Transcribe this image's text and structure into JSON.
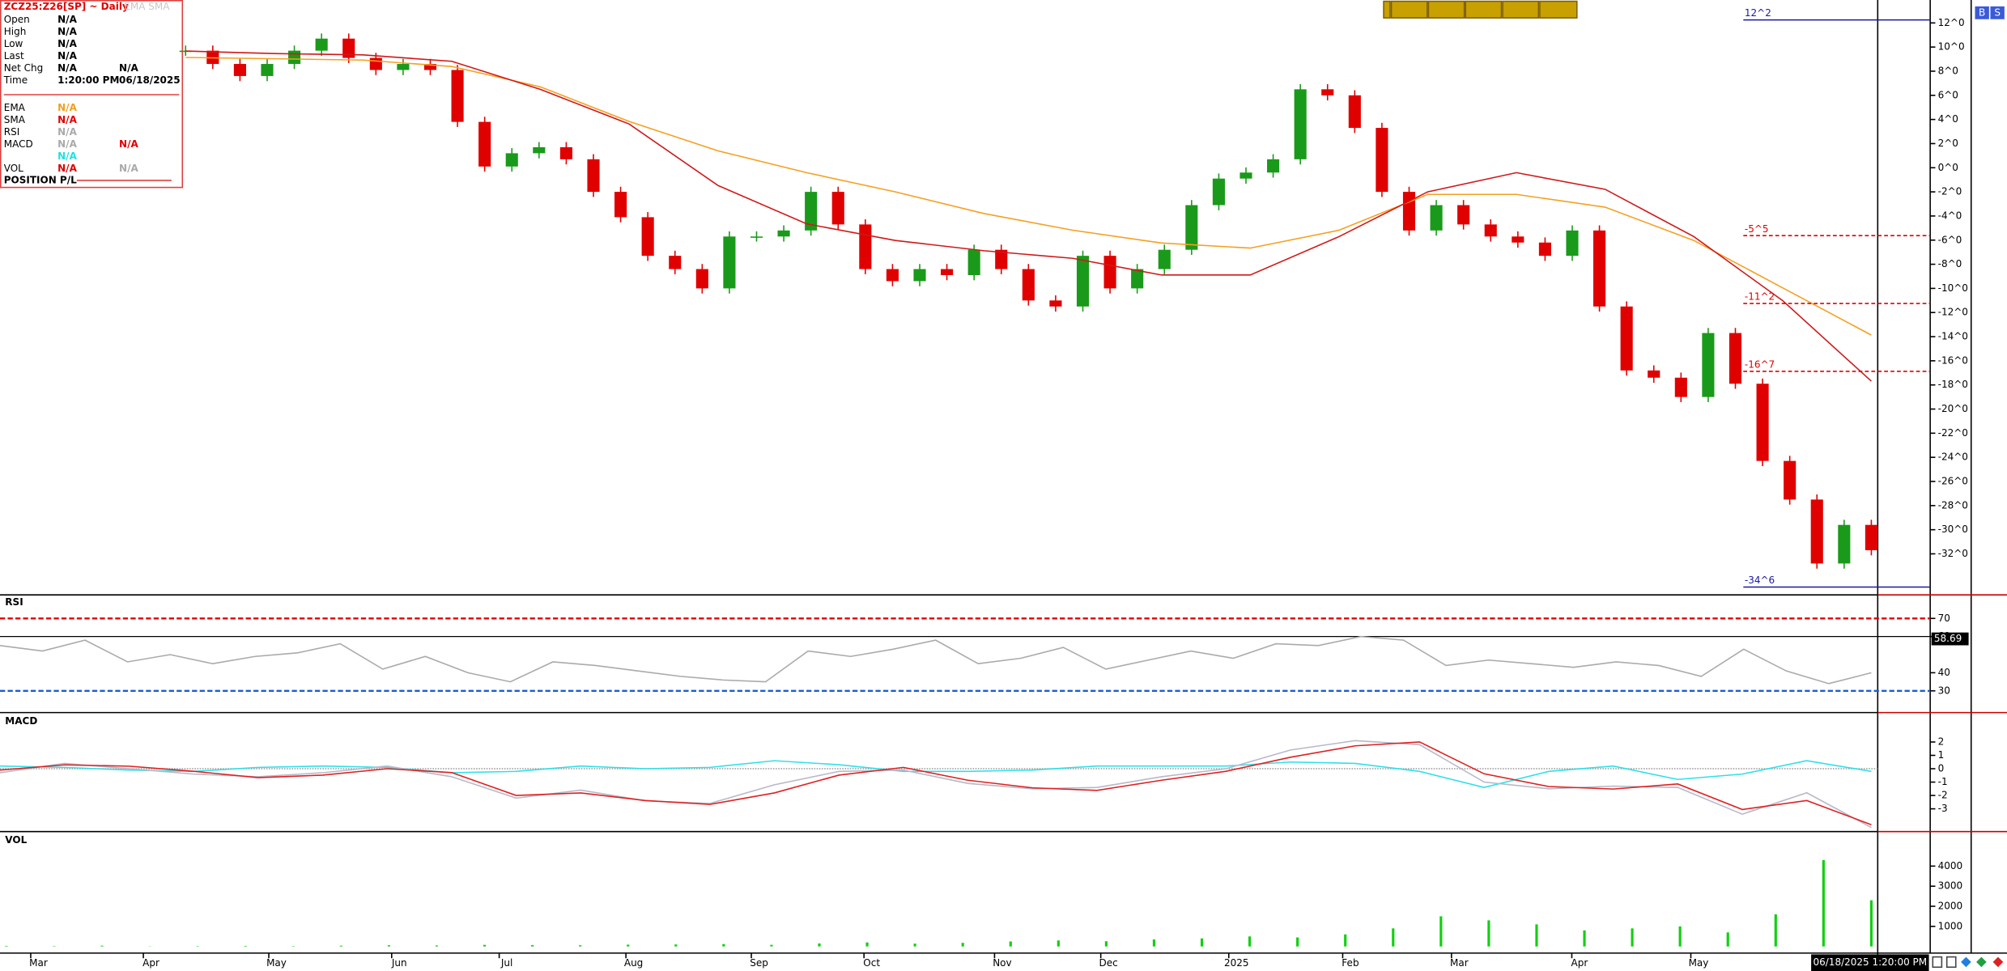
{
  "header": {
    "symbol": "ZCZ25:Z26[SP] ~ Daily",
    "indicators": "EMA SMA"
  },
  "info_panel": {
    "price_rows": [
      {
        "label": "Open",
        "values": [
          "N/A"
        ]
      },
      {
        "label": "High",
        "values": [
          "N/A"
        ]
      },
      {
        "label": "Low",
        "values": [
          "N/A"
        ]
      },
      {
        "label": "Last",
        "values": [
          "N/A"
        ]
      },
      {
        "label": "Net Chg",
        "values": [
          "N/A",
          "N/A"
        ]
      },
      {
        "label": "Time",
        "values": [
          "1:20:00 PM",
          "06/18/2025"
        ]
      }
    ],
    "indicator_rows": [
      {
        "label": "EMA",
        "values": [
          "N/A"
        ],
        "colors": [
          "#f0a020"
        ]
      },
      {
        "label": "SMA",
        "values": [
          "N/A"
        ],
        "colors": [
          "#e00000"
        ]
      },
      {
        "label": "RSI",
        "values": [
          "N/A"
        ],
        "colors": [
          "#aaaaaa"
        ]
      },
      {
        "label": "MACD",
        "values": [
          "N/A",
          "N/A"
        ],
        "colors": [
          "#aaaaaa",
          "#e00000"
        ]
      },
      {
        "values": [
          "N/A"
        ],
        "colors": [
          "#20e0e0"
        ]
      },
      {
        "label": "VOL",
        "values": [
          "N/A",
          "N/A"
        ],
        "colors": [
          "#e00000",
          "#aaaaaa"
        ]
      }
    ],
    "footer": "POSITION P/L"
  },
  "chart_data": [
    {
      "type": "candlestick",
      "up_color": "#1a9a1a",
      "down_color": "#e00000",
      "values": [
        9.7,
        8.6,
        7.6,
        8.6,
        9.7,
        10.7,
        9.1,
        8.1,
        8.6,
        8.1,
        3.8,
        0.1,
        1.2,
        1.7,
        0.7,
        -2.0,
        -4.1,
        -7.3,
        -8.4,
        -10.0,
        -5.7,
        -5.7,
        -5.2,
        -2.0,
        -4.7,
        -8.4,
        -9.4,
        -8.4,
        -8.9,
        -6.8,
        -8.4,
        -11.0,
        -11.5,
        -7.3,
        -10.0,
        -8.4,
        -6.8,
        -3.1,
        -0.9,
        -0.4,
        0.7,
        6.5,
        6.0,
        3.3,
        -2.0,
        -5.2,
        -3.1,
        -4.7,
        -5.7,
        -6.2,
        -7.3,
        -5.2,
        -11.5,
        -16.8,
        -17.4,
        -19.0,
        -13.7,
        -17.9,
        -24.3,
        -27.5,
        -32.8,
        -29.6,
        -31.7
      ],
      "overlays": [
        {
          "color": "#f5a020",
          "values": [
            9.14,
            9.03,
            8.92,
            8.39,
            6.7,
            3.83,
            1.4,
            -0.41,
            -2.0,
            -3.8,
            -5.18,
            -6.24,
            -6.66,
            -5.18,
            -2.21,
            -2.21,
            -3.27,
            -6.03,
            -9.95,
            -13.87
          ]
        },
        {
          "color": "#d01818",
          "values": [
            9.67,
            9.46,
            9.35,
            8.82,
            6.49,
            3.62,
            -1.47,
            -4.65,
            -6.03,
            -6.88,
            -7.51,
            -8.89,
            -8.89,
            -5.71,
            -2.0,
            -0.41,
            -1.79,
            -5.71,
            -11.01,
            -17.69
          ]
        }
      ],
      "ylim": [
        -35.4,
        13.9
      ],
      "yticks": [
        {
          "value": 12,
          "label": "12^0"
        },
        {
          "value": 10,
          "label": "10^0"
        },
        {
          "value": 8,
          "label": "8^0"
        },
        {
          "value": 6,
          "label": "6^0"
        },
        {
          "value": 4,
          "label": "4^0"
        },
        {
          "value": 2,
          "label": "2^0"
        },
        {
          "value": 0,
          "label": "0^0"
        },
        {
          "value": -2,
          "label": "-2^0"
        },
        {
          "value": -4,
          "label": "-4^0"
        },
        {
          "value": -6,
          "label": "-6^0"
        },
        {
          "value": -8,
          "label": "-8^0"
        },
        {
          "value": -10,
          "label": "-10^0"
        },
        {
          "value": -12,
          "label": "-12^0"
        },
        {
          "value": -14,
          "label": "-14^0"
        },
        {
          "value": -16,
          "label": "-16^0"
        },
        {
          "value": -18,
          "label": "-18^0"
        },
        {
          "value": -20,
          "label": "-20^0"
        },
        {
          "value": -22,
          "label": "-22^0"
        },
        {
          "value": -24,
          "label": "-24^0"
        },
        {
          "value": -26,
          "label": "-26^0"
        },
        {
          "value": -28,
          "label": "-28^0"
        },
        {
          "value": -30,
          "label": "-30^0"
        },
        {
          "value": -32,
          "label": "-32^0"
        }
      ],
      "price_lines": [
        {
          "value": 12.25,
          "label": "12^2",
          "color": "#1a1aa0",
          "dashed": false
        },
        {
          "value": -5.625,
          "label": "-5^5",
          "color": "#e00000",
          "dashed": true
        },
        {
          "value": -11.25,
          "label": "-11^2",
          "color": "#e00000",
          "dashed": true
        },
        {
          "value": -16.875,
          "label": "-16^7",
          "color": "#e00000",
          "dashed": true
        },
        {
          "value": -34.75,
          "label": "-34^6",
          "color": "#1a1aa0",
          "dashed": false
        }
      ]
    },
    {
      "type": "line",
      "title": "RSI",
      "color": "#aaaaaa",
      "values": [
        55,
        52,
        58,
        46,
        50,
        45,
        49,
        51,
        56,
        42,
        49,
        40,
        35,
        46,
        44,
        41,
        38,
        36,
        35,
        52,
        49,
        53,
        58,
        45,
        48,
        54,
        42,
        47,
        52,
        48,
        56,
        55,
        60,
        58,
        44,
        47,
        45,
        43,
        46,
        44,
        38,
        53,
        41,
        34,
        40
      ],
      "ylim": [
        18,
        83
      ],
      "yticks": [
        70,
        60,
        40,
        30
      ],
      "levels": [
        {
          "value": 70,
          "color": "#e00000",
          "dashed": true
        },
        {
          "value": 60,
          "color": "#000000",
          "dashed": false
        },
        {
          "value": 30,
          "color": "#1a5fd0",
          "dashed": true
        }
      ],
      "last": 58.69
    },
    {
      "type": "line",
      "title": "MACD",
      "series": [
        {
          "color": "#30e0e8",
          "values": [
            0.2,
            0.1,
            -0.1,
            -0.2,
            0.1,
            0.2,
            0.1,
            -0.3,
            -0.2,
            0.2,
            0,
            0.1,
            0.6,
            0.3,
            -0.2,
            -0.2,
            -0.1,
            0.2,
            0.2,
            0.2,
            0.5,
            0.4,
            -0.2,
            -1.4,
            -0.2,
            0.2,
            -0.8,
            -0.4,
            0.6,
            -0.2
          ]
        },
        {
          "color": "#b8b8c8",
          "values": [
            -0.3,
            0.4,
            0,
            -0.4,
            -0.6,
            -0.3,
            0.2,
            -0.6,
            -2.2,
            -1.6,
            -2.4,
            -2.6,
            -1.2,
            -0.2,
            -0.1,
            -1.1,
            -1.5,
            -1.4,
            -0.6,
            0,
            1.4,
            2.1,
            1.8,
            -1.0,
            -1.5,
            -1.3,
            -1.4,
            -3.4,
            -1.8,
            -4.4
          ]
        },
        {
          "color": "#e02020",
          "values": [
            -0.1,
            0.29,
            0.19,
            -0.19,
            -0.67,
            -0.48,
            0,
            -0.29,
            -2.0,
            -1.81,
            -2.38,
            -2.67,
            -1.81,
            -0.48,
            0.1,
            -0.86,
            -1.43,
            -1.62,
            -0.86,
            -0.19,
            0.86,
            1.71,
            2.0,
            -0.38,
            -1.33,
            -1.52,
            -1.14,
            -3.05,
            -2.38,
            -4.19
          ]
        }
      ],
      "ylim": [
        -4.7,
        4.2
      ],
      "yticks": [
        2,
        1,
        0,
        -1,
        -2,
        -3
      ],
      "zero_line": true
    },
    {
      "type": "bar",
      "title": "VOL",
      "color": "#10d010",
      "values": [
        30,
        20,
        40,
        10,
        20,
        30,
        20,
        40,
        60,
        50,
        80,
        70,
        60,
        90,
        100,
        120,
        80,
        150,
        200,
        140,
        180,
        250,
        300,
        260,
        350,
        400,
        500,
        450,
        600,
        900,
        1500,
        1300,
        1100,
        800,
        900,
        1000,
        700,
        1600,
        4300,
        2300
      ],
      "ylim": [
        -330,
        5720
      ],
      "yticks": [
        4000,
        3000,
        2000,
        1000
      ]
    }
  ],
  "x_axis": {
    "labels": [
      "Mar",
      "Apr",
      "May",
      "Jun",
      "Jul",
      "Aug",
      "Sep",
      "Oct",
      "Nov",
      "Dec",
      "2025",
      "Feb",
      "Mar",
      "Apr",
      "May"
    ]
  },
  "time_box": "06/18/2025 1:20:00 PM",
  "buttons": [
    "B",
    "S"
  ]
}
